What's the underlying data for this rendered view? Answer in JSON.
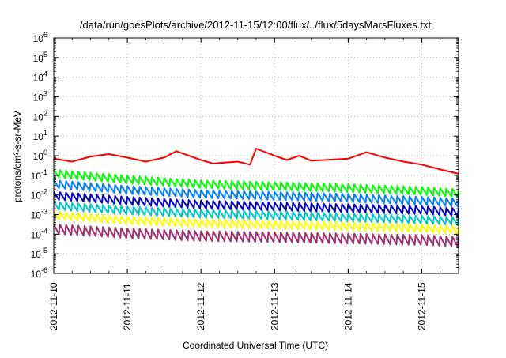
{
  "chart_data": {
    "type": "line",
    "title": "/data/run/goesPlots/archive/2012-11-15/12:00/flux/../flux/5daysMarsFluxes.txt",
    "xlabel": "Coordinated Universal Time (UTC)",
    "ylabel": "protons/cm²-s-sr-MeV",
    "y_scale": "log",
    "ylim": [
      1e-06,
      1000000.0
    ],
    "xlim": [
      "2012-11-10T00:00",
      "2012-11-15T12:00"
    ],
    "x_ticks": [
      "2012-11-10",
      "2012-11-11",
      "2012-11-12",
      "2012-11-13",
      "2012-11-14",
      "2012-11-15"
    ],
    "y_ticks": [
      {
        "base": "10",
        "exp": "-6"
      },
      {
        "base": "10",
        "exp": "-5"
      },
      {
        "base": "10",
        "exp": "-4"
      },
      {
        "base": "10",
        "exp": "-3"
      },
      {
        "base": "10",
        "exp": "-2"
      },
      {
        "base": "10",
        "exp": "-1"
      },
      {
        "base": "10",
        "exp": "0"
      },
      {
        "base": "10",
        "exp": "1"
      },
      {
        "base": "10",
        "exp": "2"
      },
      {
        "base": "10",
        "exp": "3"
      },
      {
        "base": "10",
        "exp": "4"
      },
      {
        "base": "10",
        "exp": "5"
      },
      {
        "base": "10",
        "exp": "6"
      }
    ],
    "grid": true,
    "series": [
      {
        "color": "#ff0000",
        "points": [
          [
            "2012-11-10T00:00",
            0.7
          ],
          [
            "2012-11-10T06:00",
            0.5
          ],
          [
            "2012-11-10T12:00",
            0.9
          ],
          [
            "2012-11-10T18:00",
            1.2
          ],
          [
            "2012-11-11T00:00",
            0.8
          ],
          [
            "2012-11-11T06:00",
            0.5
          ],
          [
            "2012-11-11T12:00",
            0.8
          ],
          [
            "2012-11-11T16:00",
            1.7
          ],
          [
            "2012-11-12T00:00",
            0.6
          ],
          [
            "2012-11-12T04:00",
            0.4
          ],
          [
            "2012-11-12T12:00",
            0.5
          ],
          [
            "2012-11-12T16:00",
            0.35
          ],
          [
            "2012-11-12T18:00",
            2.3
          ],
          [
            "2012-11-13T00:00",
            1.0
          ],
          [
            "2012-11-13T04:00",
            0.6
          ],
          [
            "2012-11-13T08:00",
            1.0
          ],
          [
            "2012-11-13T12:00",
            0.55
          ],
          [
            "2012-11-14T00:00",
            0.7
          ],
          [
            "2012-11-14T06:00",
            1.5
          ],
          [
            "2012-11-14T12:00",
            0.8
          ],
          [
            "2012-11-14T18:00",
            0.5
          ],
          [
            "2012-11-15T00:00",
            0.35
          ],
          [
            "2012-11-15T06:00",
            0.2
          ],
          [
            "2012-11-15T12:00",
            0.12
          ]
        ]
      },
      {
        "color": "#00ff00",
        "points": [
          [
            "2012-11-10T00:00",
            0.12
          ],
          [
            "2012-11-11T00:00",
            0.06
          ],
          [
            "2012-11-12T00:00",
            0.035
          ],
          [
            "2012-11-13T00:00",
            0.028
          ],
          [
            "2012-11-14T00:00",
            0.022
          ],
          [
            "2012-11-15T00:00",
            0.016
          ],
          [
            "2012-11-15T12:00",
            0.012
          ]
        ]
      },
      {
        "color": "#0080ff",
        "points": [
          [
            "2012-11-10T00:00",
            0.035
          ],
          [
            "2012-11-11T00:00",
            0.018
          ],
          [
            "2012-11-12T00:00",
            0.011
          ],
          [
            "2012-11-13T00:00",
            0.009
          ],
          [
            "2012-11-14T00:00",
            0.007
          ],
          [
            "2012-11-15T00:00",
            0.005
          ],
          [
            "2012-11-15T12:00",
            0.004
          ]
        ]
      },
      {
        "color": "#0000cc",
        "points": [
          [
            "2012-11-10T00:00",
            0.009
          ],
          [
            "2012-11-11T00:00",
            0.005
          ],
          [
            "2012-11-12T00:00",
            0.0032
          ],
          [
            "2012-11-13T00:00",
            0.0026
          ],
          [
            "2012-11-14T00:00",
            0.0021
          ],
          [
            "2012-11-15T00:00",
            0.0017
          ],
          [
            "2012-11-15T12:00",
            0.0013
          ]
        ]
      },
      {
        "color": "#00c8c8",
        "points": [
          [
            "2012-11-10T00:00",
            0.0028
          ],
          [
            "2012-11-11T00:00",
            0.0016
          ],
          [
            "2012-11-12T00:00",
            0.0011
          ],
          [
            "2012-11-13T00:00",
            0.0009
          ],
          [
            "2012-11-14T00:00",
            0.0007
          ],
          [
            "2012-11-15T00:00",
            0.00055
          ],
          [
            "2012-11-15T12:00",
            0.00045
          ]
        ]
      },
      {
        "color": "#ffff00",
        "points": [
          [
            "2012-11-10T00:00",
            0.0009
          ],
          [
            "2012-11-11T00:00",
            0.0005
          ],
          [
            "2012-11-12T00:00",
            0.00036
          ],
          [
            "2012-11-13T00:00",
            0.0003
          ],
          [
            "2012-11-14T00:00",
            0.00025
          ],
          [
            "2012-11-15T00:00",
            0.0002
          ],
          [
            "2012-11-15T12:00",
            0.00016
          ]
        ]
      },
      {
        "color": "#a0306e",
        "points": [
          [
            "2012-11-10T00:00",
            0.00018
          ],
          [
            "2012-11-11T00:00",
            0.00011
          ],
          [
            "2012-11-12T00:00",
            8e-05
          ],
          [
            "2012-11-13T00:00",
            7e-05
          ],
          [
            "2012-11-14T00:00",
            6e-05
          ],
          [
            "2012-11-15T00:00",
            5e-05
          ],
          [
            "2012-11-15T12:00",
            4e-05
          ]
        ]
      }
    ]
  }
}
